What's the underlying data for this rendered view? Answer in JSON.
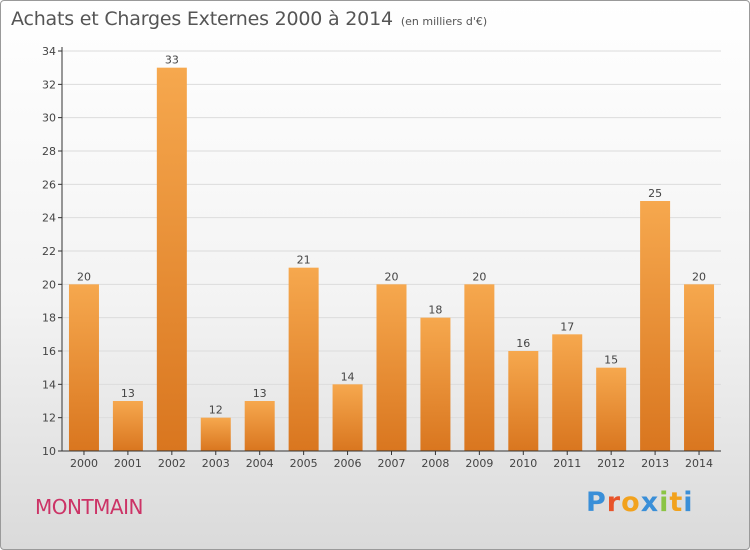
{
  "header": {
    "title": "Achats et Charges Externes 2000 à 2014",
    "subtitle": "(en milliers d'€)"
  },
  "commune": "MONTMAIN",
  "logo": {
    "text": "Proxiti",
    "colors": [
      "#3a8fd8",
      "#e8542a",
      "#f2a21d",
      "#3a8fd8",
      "#8bc443",
      "#f2a21d",
      "#3a8fd8"
    ]
  },
  "colors": {
    "bar_light": "#f6a84e",
    "bar_dark": "#d9761f",
    "grid": "#dcdcdc",
    "axis": "#333333",
    "text": "#444444",
    "commune": "#cc3366"
  },
  "chart_data": {
    "type": "bar",
    "title": "Achats et Charges Externes 2000 à 2014",
    "subtitle": "(en milliers d'€)",
    "categories": [
      "2000",
      "2001",
      "2002",
      "2003",
      "2004",
      "2005",
      "2006",
      "2007",
      "2008",
      "2009",
      "2010",
      "2011",
      "2012",
      "2013",
      "2014"
    ],
    "values": [
      20,
      13,
      33,
      12,
      13,
      21,
      14,
      20,
      18,
      20,
      16,
      17,
      15,
      25,
      20
    ],
    "data_labels": [
      "20",
      "13",
      "33",
      "12",
      "13",
      "21",
      "14",
      "20",
      "18",
      "20",
      "16",
      "17",
      "15",
      "25",
      "20"
    ],
    "yticks": [
      "10",
      "12",
      "14",
      "16",
      "18",
      "20",
      "22",
      "24",
      "26",
      "28",
      "30",
      "32",
      "34"
    ],
    "ylim": [
      10,
      34
    ],
    "grid": true
  }
}
